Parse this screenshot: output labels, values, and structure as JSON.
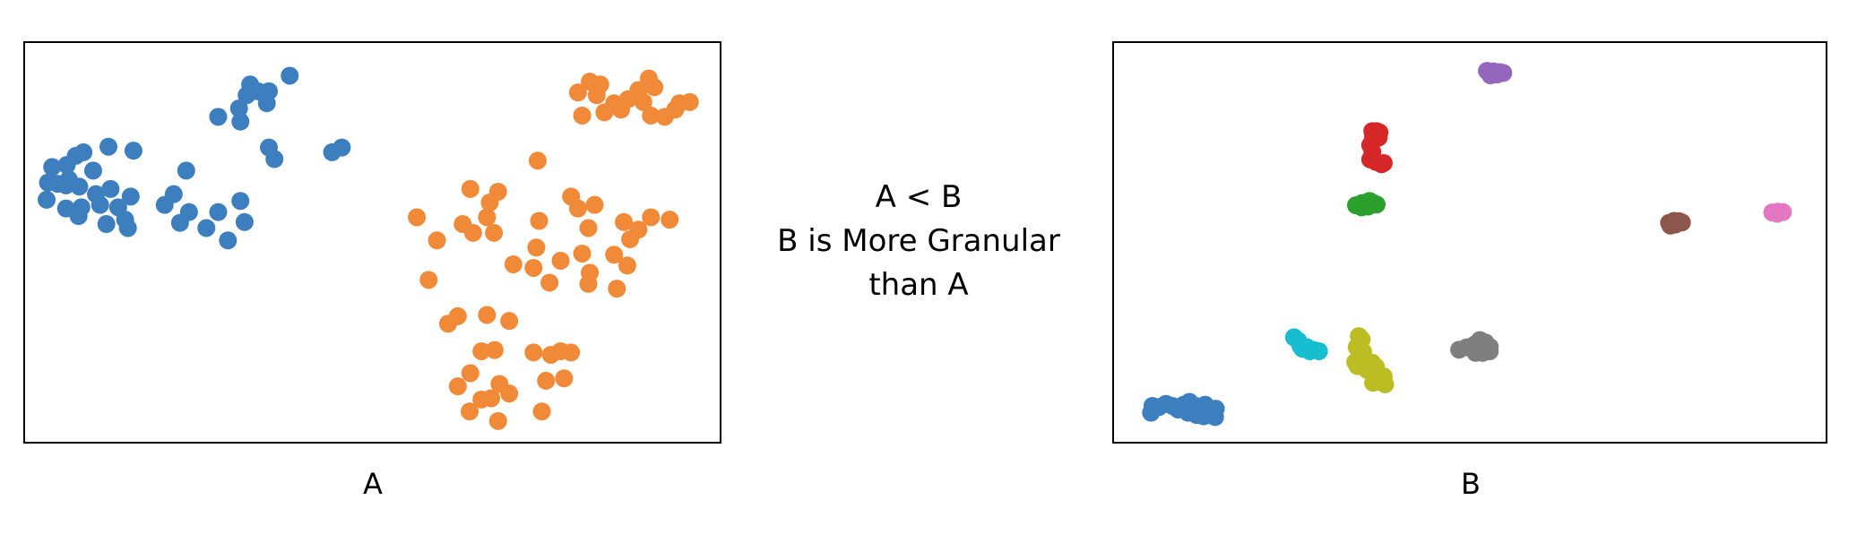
{
  "comparison": {
    "line1": "A < B",
    "line2": "B is More Granular",
    "line3": "than A"
  },
  "chart_data": [
    {
      "type": "scatter",
      "caption": "A",
      "xlim": [
        0,
        100
      ],
      "ylim": [
        0,
        100
      ],
      "grid": false,
      "legend": "none",
      "series": [
        {
          "color": "#3d7ebf",
          "points": [
            [
              32.4,
              89.6
            ],
            [
              38.1,
              91.8
            ],
            [
              31.9,
              86.9
            ],
            [
              33.5,
              87.9
            ],
            [
              35.1,
              87.9
            ],
            [
              34.8,
              84.9
            ],
            [
              30.8,
              83.6
            ],
            [
              27.8,
              81.5
            ],
            [
              31.0,
              80.3
            ],
            [
              35.1,
              73.8
            ],
            [
              35.9,
              70.9
            ],
            [
              44.2,
              72.6
            ],
            [
              45.6,
              73.8
            ],
            [
              3.3,
              65.0
            ],
            [
              3.9,
              68.9
            ],
            [
              6.0,
              69.4
            ],
            [
              8.4,
              72.6
            ],
            [
              7.3,
              71.7
            ],
            [
              12.0,
              74.0
            ],
            [
              15.6,
              73.0
            ],
            [
              9.8,
              68.0
            ],
            [
              6.3,
              65.8
            ],
            [
              5.9,
              64.3
            ],
            [
              7.8,
              64.0
            ],
            [
              4.7,
              64.7
            ],
            [
              10.8,
              59.4
            ],
            [
              12.3,
              63.4
            ],
            [
              15.2,
              61.5
            ],
            [
              23.2,
              68.0
            ],
            [
              13.4,
              58.8
            ],
            [
              20.1,
              59.4
            ],
            [
              23.6,
              57.6
            ],
            [
              10.2,
              62.1
            ],
            [
              8.1,
              58.8
            ],
            [
              14.4,
              55.7
            ],
            [
              3.1,
              60.7
            ],
            [
              5.9,
              58.5
            ],
            [
              7.7,
              56.6
            ],
            [
              11.7,
              54.6
            ],
            [
              14.8,
              53.6
            ],
            [
              22.3,
              54.9
            ],
            [
              21.4,
              62.1
            ],
            [
              31.0,
              60.4
            ],
            [
              27.8,
              57.6
            ],
            [
              26.1,
              53.6
            ],
            [
              31.6,
              55.1
            ],
            [
              29.2,
              50.5
            ]
          ]
        },
        {
          "color": "#f08a38",
          "points": [
            [
              79.6,
              87.6
            ],
            [
              81.3,
              90.3
            ],
            [
              82.8,
              89.6
            ],
            [
              80.2,
              81.8
            ],
            [
              83.4,
              82.6
            ],
            [
              82.3,
              86.9
            ],
            [
              84.8,
              84.9
            ],
            [
              85.8,
              83.3
            ],
            [
              89.8,
              91.1
            ],
            [
              88.3,
              88.2
            ],
            [
              90.6,
              88.9
            ],
            [
              86.8,
              85.9
            ],
            [
              89.0,
              85.2
            ],
            [
              90.1,
              81.8
            ],
            [
              92.1,
              81.5
            ],
            [
              94.2,
              84.9
            ],
            [
              95.7,
              85.2
            ],
            [
              93.6,
              83.3
            ],
            [
              73.8,
              70.5
            ],
            [
              64.1,
              63.4
            ],
            [
              68.1,
              62.7
            ],
            [
              66.9,
              60.0
            ],
            [
              66.5,
              56.3
            ],
            [
              63.0,
              54.6
            ],
            [
              56.4,
              56.3
            ],
            [
              67.5,
              52.4
            ],
            [
              59.3,
              50.5
            ],
            [
              64.5,
              52.4
            ],
            [
              74.0,
              55.4
            ],
            [
              73.6,
              48.7
            ],
            [
              79.6,
              58.5
            ],
            [
              78.6,
              61.5
            ],
            [
              82.0,
              59.4
            ],
            [
              81.1,
              53.6
            ],
            [
              86.2,
              55.1
            ],
            [
              88.3,
              53.2
            ],
            [
              92.8,
              55.7
            ],
            [
              90.1,
              56.3
            ],
            [
              87.1,
              50.8
            ],
            [
              80.2,
              47.2
            ],
            [
              77.1,
              45.4
            ],
            [
              84.8,
              46.9
            ],
            [
              73.2,
              43.6
            ],
            [
              81.3,
              42.4
            ],
            [
              70.3,
              44.5
            ],
            [
              58.1,
              40.6
            ],
            [
              75.5,
              39.9
            ],
            [
              81.1,
              39.6
            ],
            [
              85.2,
              38.4
            ],
            [
              86.7,
              44.2
            ],
            [
              62.3,
              31.5
            ],
            [
              60.9,
              29.6
            ],
            [
              66.5,
              31.8
            ],
            [
              69.7,
              30.3
            ],
            [
              67.6,
              23.0
            ],
            [
              65.7,
              22.7
            ],
            [
              73.2,
              22.4
            ],
            [
              77.1,
              22.7
            ],
            [
              78.6,
              22.4
            ],
            [
              75.7,
              21.8
            ],
            [
              75.0,
              15.3
            ],
            [
              77.6,
              15.9
            ],
            [
              64.1,
              17.2
            ],
            [
              62.3,
              13.9
            ],
            [
              65.7,
              10.6
            ],
            [
              68.3,
              14.5
            ],
            [
              69.7,
              12.1
            ],
            [
              67.1,
              10.9
            ],
            [
              64.0,
              7.6
            ],
            [
              68.1,
              5.2
            ],
            [
              74.4,
              7.6
            ]
          ]
        }
      ]
    },
    {
      "type": "scatter",
      "caption": "B",
      "xlim": [
        0,
        100
      ],
      "ylim": [
        0,
        100
      ],
      "grid": false,
      "legend": "none",
      "series": [
        {
          "color": "#9467bd",
          "points": [
            [
              52.4,
              93.0
            ],
            [
              53.3,
              92.9
            ],
            [
              54.2,
              92.7
            ],
            [
              54.7,
              92.5
            ],
            [
              53.8,
              92.1
            ],
            [
              52.9,
              91.9
            ]
          ]
        },
        {
          "color": "#d62728",
          "points": [
            [
              36.3,
              77.9
            ],
            [
              36.9,
              77.9
            ],
            [
              37.3,
              77.6
            ],
            [
              36.4,
              76.6
            ],
            [
              37.2,
              76.3
            ],
            [
              36.0,
              74.4
            ],
            [
              36.3,
              72.7
            ],
            [
              36.0,
              70.8
            ],
            [
              36.8,
              70.2
            ],
            [
              37.6,
              69.6
            ],
            [
              37.9,
              69.9
            ]
          ]
        },
        {
          "color": "#2ca02c",
          "points": [
            [
              34.0,
              59.3
            ],
            [
              34.9,
              59.9
            ],
            [
              35.9,
              60.4
            ],
            [
              36.4,
              59.9
            ],
            [
              36.9,
              59.5
            ],
            [
              35.7,
              59.0
            ],
            [
              34.8,
              58.8
            ]
          ]
        },
        {
          "color": "#8c564b",
          "points": [
            [
              78.0,
              54.9
            ],
            [
              78.7,
              55.4
            ],
            [
              79.4,
              55.3
            ],
            [
              79.8,
              55.0
            ],
            [
              78.9,
              54.5
            ],
            [
              78.2,
              54.2
            ]
          ]
        },
        {
          "color": "#e377c2",
          "points": [
            [
              92.5,
              57.5
            ],
            [
              93.3,
              57.7
            ],
            [
              94.0,
              57.6
            ],
            [
              93.2,
              57.2
            ]
          ]
        },
        {
          "color": "#17becf",
          "points": [
            [
              25.3,
              26.2
            ],
            [
              25.9,
              25.3
            ],
            [
              26.2,
              24.0
            ],
            [
              27.1,
              23.7
            ],
            [
              28.1,
              23.0
            ],
            [
              28.8,
              22.7
            ],
            [
              27.5,
              22.7
            ],
            [
              26.5,
              23.3
            ]
          ]
        },
        {
          "color": "#bcbd22",
          "points": [
            [
              34.4,
              26.5
            ],
            [
              34.8,
              25.7
            ],
            [
              34.1,
              23.7
            ],
            [
              35.0,
              22.6
            ],
            [
              33.9,
              20.0
            ],
            [
              35.0,
              19.5
            ],
            [
              36.3,
              19.8
            ],
            [
              35.5,
              18.1
            ],
            [
              36.8,
              18.8
            ],
            [
              37.0,
              17.0
            ],
            [
              37.9,
              16.4
            ],
            [
              38.1,
              14.4
            ],
            [
              37.6,
              14.9
            ],
            [
              36.4,
              14.8
            ],
            [
              34.2,
              19.0
            ]
          ]
        },
        {
          "color": "#7f7f7f",
          "points": [
            [
              48.5,
              23.1
            ],
            [
              49.6,
              23.7
            ],
            [
              50.7,
              24.4
            ],
            [
              51.4,
              25.5
            ],
            [
              52.2,
              24.9
            ],
            [
              52.8,
              23.8
            ],
            [
              52.8,
              22.7
            ],
            [
              51.8,
              22.3
            ],
            [
              50.8,
              22.3
            ]
          ]
        },
        {
          "color": "#3d7ebf",
          "points": [
            [
              5.2,
              7.3
            ],
            [
              5.4,
              9.0
            ],
            [
              6.3,
              8.7
            ],
            [
              7.3,
              9.5
            ],
            [
              8.2,
              9.0
            ],
            [
              9.0,
              8.1
            ],
            [
              9.8,
              9.3
            ],
            [
              10.6,
              10.0
            ],
            [
              11.2,
              9.2
            ],
            [
              12.0,
              8.2
            ],
            [
              12.3,
              8.6
            ],
            [
              12.8,
              9.3
            ],
            [
              13.1,
              7.8
            ],
            [
              12.6,
              6.4
            ],
            [
              14.3,
              8.3
            ],
            [
              13.4,
              6.7
            ],
            [
              14.2,
              6.2
            ],
            [
              11.6,
              6.7
            ],
            [
              10.4,
              7.3
            ]
          ]
        }
      ]
    }
  ]
}
